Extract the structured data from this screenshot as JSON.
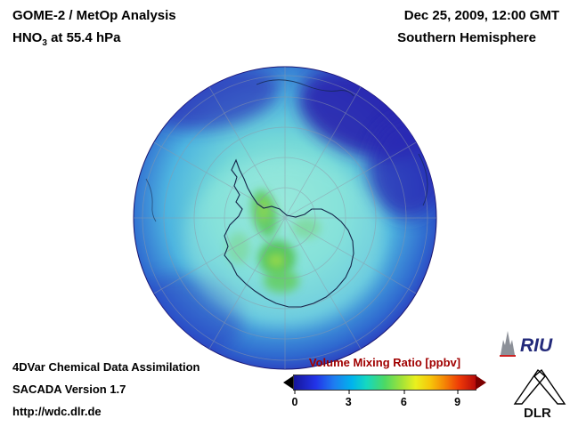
{
  "header": {
    "title_line1": "GOME-2 / MetOp Analysis",
    "species": "HNO",
    "species_sub": "3",
    "level_suffix": " at 55.4 hPa",
    "datetime": "Dec 25, 2009, 12:00 GMT",
    "hemisphere": "Southern Hemisphere"
  },
  "footer": {
    "line1": "4DVar Chemical Data Assimilation",
    "line2": "SACADA Version 1.7",
    "line3": "http://wdc.dlr.de"
  },
  "colorbar": {
    "title": "Volume Mixing Ratio [ppbv]",
    "title_color": "#a00000",
    "left_arrow_color": "#000000",
    "right_arrow_color": "#7d0000",
    "gradient_stops": [
      "#16169a 0%",
      "#2233e8 12%",
      "#1e7cf0 22%",
      "#00b4ec 32%",
      "#15d8c0 40%",
      "#4cd964 50%",
      "#9fe23a 59%",
      "#eaf01e 67%",
      "#f6c60a 75%",
      "#f58405 83%",
      "#ee3a07 91%",
      "#b80b0b 100%"
    ],
    "ticks": [
      {
        "label": "0",
        "pos": 0.5
      },
      {
        "label": "3",
        "pos": 30
      },
      {
        "label": "6",
        "pos": 60.5
      },
      {
        "label": "9",
        "pos": 90
      }
    ]
  },
  "logos": {
    "riu": "RIU",
    "dlr": "DLR"
  },
  "chart_data": {
    "type": "heatmap",
    "title": "GOME-2 / MetOp Analysis - HNO3 at 55.4 hPa",
    "datetime": "Dec 25, 2009, 12:00 GMT",
    "region": "Southern Hemisphere",
    "projection": "south polar orthographic globe with graticule and Antarctica coastline",
    "variable": "HNO3 volume mixing ratio",
    "units": "ppbv",
    "colorbar": {
      "label": "Volume Mixing Ratio [ppbv]",
      "range": [
        0,
        10
      ],
      "ticks": [
        0,
        3,
        6,
        9
      ],
      "orientation": "horizontal",
      "colors_low_to_high": [
        "#16169a",
        "#2233e8",
        "#00b4ec",
        "#15d8c0",
        "#4cd964",
        "#eaf01e",
        "#f58405",
        "#ee3a07",
        "#b80b0b"
      ]
    },
    "field_features": [
      {
        "region": "outer mid-latitude ring / limb of globe",
        "approx_value_ppbv": 0.5,
        "color": "dark blue"
      },
      {
        "region": "dark lobe intruding from upper-right toward pole",
        "approx_value_ppbv": 1.0,
        "color": "dark blue"
      },
      {
        "region": "upper-left limb band",
        "approx_value_ppbv": 1.0,
        "color": "blue"
      },
      {
        "region": "polar cap background over/around Antarctica",
        "approx_value_ppbv": 2.5,
        "color": "cyan"
      },
      {
        "region": "elongated patch west of Antarctic Peninsula",
        "approx_value_ppbv": 4.5,
        "color": "green"
      },
      {
        "region": "bright patch over central Antarctica near pole",
        "approx_value_ppbv": 5.0,
        "color": "green"
      },
      {
        "region": "secondary patch east of pole",
        "approx_value_ppbv": 4.0,
        "color": "green-cyan"
      }
    ],
    "legend_position": "bottom-center",
    "grid": true
  }
}
